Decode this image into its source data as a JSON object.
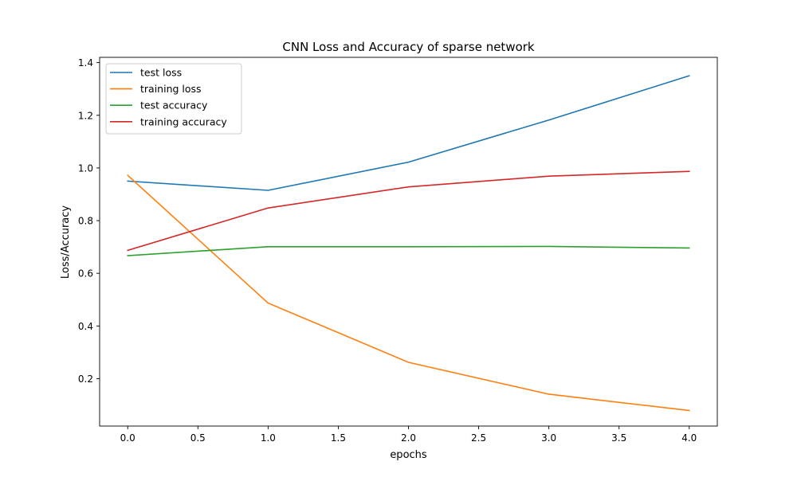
{
  "chart_data": {
    "type": "line",
    "title": "CNN Loss and Accuracy of sparse network",
    "xlabel": "epochs",
    "ylabel": "Loss/Accuracy",
    "xlim": [
      -0.2,
      4.2
    ],
    "ylim": [
      0.02,
      1.42
    ],
    "xticks": [
      0.0,
      0.5,
      1.0,
      1.5,
      2.0,
      2.5,
      3.0,
      3.5,
      4.0
    ],
    "xtick_labels": [
      "0.0",
      "0.5",
      "1.0",
      "1.5",
      "2.0",
      "2.5",
      "3.0",
      "3.5",
      "4.0"
    ],
    "yticks": [
      0.2,
      0.4,
      0.6,
      0.8,
      1.0,
      1.2,
      1.4
    ],
    "ytick_labels": [
      "0.2",
      "0.4",
      "0.6",
      "0.8",
      "1.0",
      "1.2",
      "1.4"
    ],
    "grid": false,
    "legend_position": "top-left",
    "x": [
      0,
      1,
      2,
      3,
      4
    ],
    "series": [
      {
        "name": "test loss",
        "color": "#1f77b4",
        "values": [
          0.95,
          0.915,
          1.022,
          1.182,
          1.35
        ]
      },
      {
        "name": "training loss",
        "color": "#ff7f0e",
        "values": [
          0.972,
          0.487,
          0.262,
          0.141,
          0.079
        ]
      },
      {
        "name": "test accuracy",
        "color": "#2ca02c",
        "values": [
          0.667,
          0.701,
          0.701,
          0.702,
          0.696
        ]
      },
      {
        "name": "training accuracy",
        "color": "#d62728",
        "values": [
          0.687,
          0.848,
          0.928,
          0.969,
          0.987
        ]
      }
    ]
  }
}
